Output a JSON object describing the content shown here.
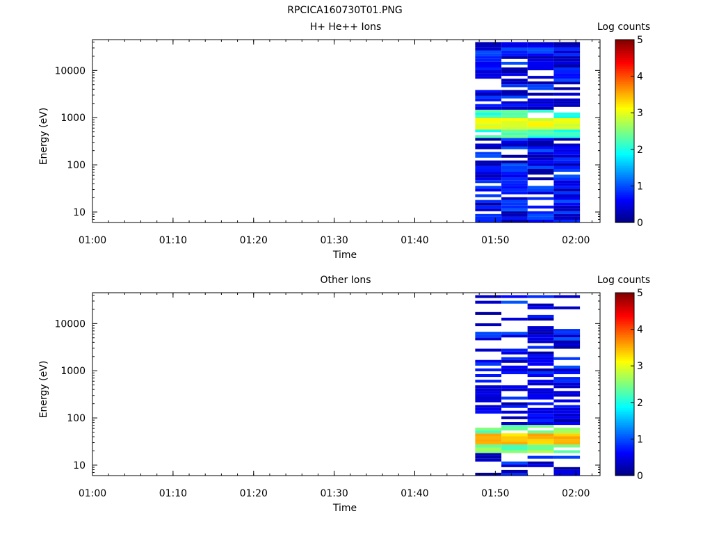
{
  "figure_title": "RPCICA160730T01.PNG",
  "chart_data": [
    {
      "type": "heatmap",
      "title": "H+ He++ Ions",
      "xlabel": "Time",
      "ylabel": "Energy (eV)",
      "x_ticks": [
        "01:00",
        "01:10",
        "01:20",
        "01:30",
        "01:40",
        "01:50",
        "02:00"
      ],
      "xlim": [
        "01:00",
        "02:03"
      ],
      "yscale": "log",
      "ylim": [
        6,
        45000
      ],
      "y_ticks": [
        10,
        100,
        1000,
        10000
      ],
      "y_tick_labels": [
        "10",
        "100",
        "1000",
        "10000"
      ],
      "colorbar": {
        "label": "Log counts",
        "range": [
          0,
          5
        ],
        "ticks": [
          "0",
          "1",
          "2",
          "3",
          "4",
          "5"
        ],
        "colormap": "jet"
      },
      "time_bins": [
        {
          "start": "01:47.5",
          "end": "01:50.75"
        },
        {
          "start": "01:50.75",
          "end": "01:54"
        },
        {
          "start": "01:54",
          "end": "01:57.25"
        },
        {
          "start": "01:57.25",
          "end": "02:00.5"
        }
      ],
      "peak_energy_band": {
        "energy_ev": [
          550,
          900
        ],
        "log_counts": 3.2
      },
      "data_extent_energy_ev": [
        6,
        40000
      ]
    },
    {
      "type": "heatmap",
      "title": "Other Ions",
      "xlabel": "Time",
      "ylabel": "Energy (eV)",
      "x_ticks": [
        "01:00",
        "01:10",
        "01:20",
        "01:30",
        "01:40",
        "01:50",
        "02:00"
      ],
      "xlim": [
        "01:00",
        "02:03"
      ],
      "yscale": "log",
      "ylim": [
        6,
        45000
      ],
      "y_ticks": [
        10,
        100,
        1000,
        10000
      ],
      "y_tick_labels": [
        "10",
        "100",
        "1000",
        "10000"
      ],
      "colorbar": {
        "label": "Log counts",
        "range": [
          0,
          5
        ],
        "ticks": [
          "0",
          "1",
          "2",
          "3",
          "4",
          "5"
        ],
        "colormap": "jet"
      },
      "time_bins": [
        {
          "start": "01:47.5",
          "end": "01:50.75"
        },
        {
          "start": "01:50.75",
          "end": "01:54"
        },
        {
          "start": "01:54",
          "end": "01:57.25"
        },
        {
          "start": "01:57.25",
          "end": "02:00.5"
        }
      ],
      "peak_energy_band": {
        "energy_ev": [
          28,
          45
        ],
        "log_counts": 3.6
      },
      "data_extent_energy_ev": [
        6,
        40000
      ]
    }
  ]
}
